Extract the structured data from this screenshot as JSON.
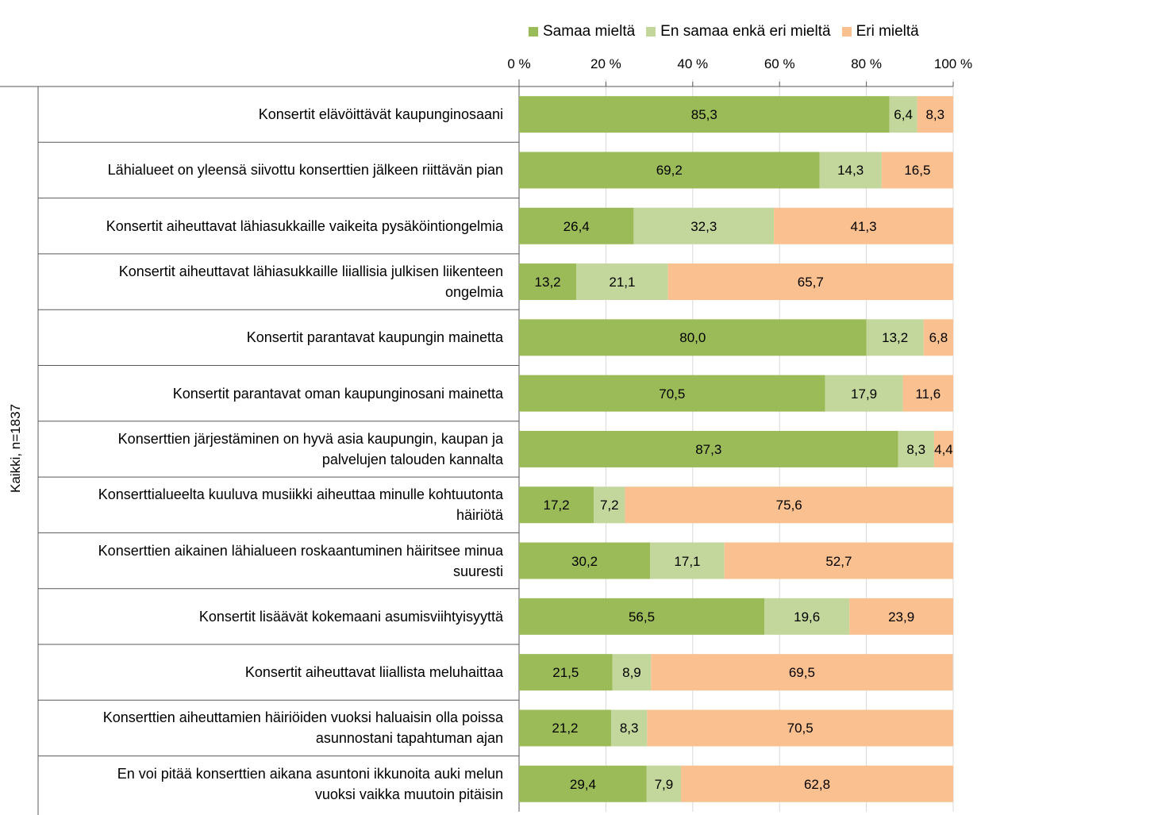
{
  "colors": {
    "agree": "#9bbb59",
    "neutral": "#c3d69b",
    "disagree": "#fac090",
    "grid": "#d9d9d9",
    "axis": "#595959"
  },
  "chart_data": {
    "type": "bar",
    "orientation": "horizontal-stacked-100",
    "group_label": "Kaikki, n=1837",
    "legend_position": "top",
    "legend": [
      "Samaa mieltä",
      "En samaa enkä eri mieltä",
      "Eri mieltä"
    ],
    "x_ticks": [
      "0 %",
      "20 %",
      "40 %",
      "60 %",
      "80 %",
      "100 %"
    ],
    "xlim": [
      0,
      100
    ],
    "categories": [
      "Konsertit elävöittävät kaupunginosaani",
      "Lähialueet on yleensä siivottu konserttien jälkeen riittävän pian",
      "Konsertit aiheuttavat lähiasukkaille vaikeita pysäköintiongelmia",
      "Konsertit aiheuttavat lähiasukkaille liiallisia julkisen liikenteen ongelmia",
      "Konsertit parantavat kaupungin mainetta",
      "Konsertit parantavat oman kaupunginosani mainetta",
      "Konserttien järjestäminen on hyvä asia kaupungin, kaupan ja palvelujen talouden kannalta",
      "Konserttialueelta kuuluva musiikki aiheuttaa minulle kohtuutonta häiriötä",
      "Konserttien aikainen lähialueen roskaantuminen häiritsee minua suuresti",
      "Konsertit lisäävät kokemaani asumisviihtyisyyttä",
      "Konsertit aiheuttavat liiallista meluhaittaa",
      "Konserttien aiheuttamien häiriöiden vuoksi haluaisin olla poissa asunnostani tapahtuman ajan",
      "En voi pitää konserttien aikana asuntoni ikkunoita auki melun vuoksi vaikka muutoin pitäisin"
    ],
    "category_lines": [
      [
        "Konsertit elävöittävät kaupunginosaani"
      ],
      [
        "Lähialueet on yleensä siivottu konserttien jälkeen riittävän pian"
      ],
      [
        "Konsertit aiheuttavat lähiasukkaille vaikeita pysäköintiongelmia"
      ],
      [
        "Konsertit aiheuttavat lähiasukkaille liiallisia julkisen liikenteen",
        "ongelmia"
      ],
      [
        "Konsertit parantavat kaupungin mainetta"
      ],
      [
        "Konsertit parantavat oman kaupunginosani mainetta"
      ],
      [
        "Konserttien järjestäminen on hyvä asia kaupungin, kaupan ja",
        "palvelujen talouden kannalta"
      ],
      [
        "Konserttialueelta kuuluva musiikki aiheuttaa minulle kohtuutonta",
        "häiriötä"
      ],
      [
        "Konserttien aikainen lähialueen roskaantuminen häiritsee minua",
        "suuresti"
      ],
      [
        "Konsertit lisäävät kokemaani asumisviihtyisyyttä"
      ],
      [
        "Konsertit aiheuttavat liiallista meluhaittaa"
      ],
      [
        "Konserttien aiheuttamien häiriöiden vuoksi haluaisin olla poissa",
        "asunnostani tapahtuman ajan"
      ],
      [
        "En voi pitää konserttien aikana asuntoni ikkunoita auki melun",
        "vuoksi vaikka muutoin pitäisin"
      ]
    ],
    "series": [
      {
        "name": "Samaa mieltä",
        "key": "agree",
        "values": [
          85.3,
          69.2,
          26.4,
          13.2,
          80.0,
          70.5,
          87.3,
          17.2,
          30.2,
          56.5,
          21.5,
          21.2,
          29.4
        ],
        "labels": [
          "85,3",
          "69,2",
          "26,4",
          "13,2",
          "80,0",
          "70,5",
          "87,3",
          "17,2",
          "30,2",
          "56,5",
          "21,5",
          "21,2",
          "29,4"
        ]
      },
      {
        "name": "En samaa enkä eri mieltä",
        "key": "neutral",
        "values": [
          6.4,
          14.3,
          32.3,
          21.1,
          13.2,
          17.9,
          8.3,
          7.2,
          17.1,
          19.6,
          8.9,
          8.3,
          7.9
        ],
        "labels": [
          "6,4",
          "14,3",
          "32,3",
          "21,1",
          "13,2",
          "17,9",
          "8,3",
          "7,2",
          "17,1",
          "19,6",
          "8,9",
          "8,3",
          "7,9"
        ]
      },
      {
        "name": "Eri mieltä",
        "key": "disagree",
        "values": [
          8.3,
          16.5,
          41.3,
          65.7,
          6.8,
          11.6,
          4.4,
          75.6,
          52.7,
          23.9,
          69.5,
          70.5,
          62.8
        ],
        "labels": [
          "8,3",
          "16,5",
          "41,3",
          "65,7",
          "6,8",
          "11,6",
          "4,4",
          "75,6",
          "52,7",
          "23,9",
          "69,5",
          "70,5",
          "62,8"
        ]
      }
    ]
  }
}
